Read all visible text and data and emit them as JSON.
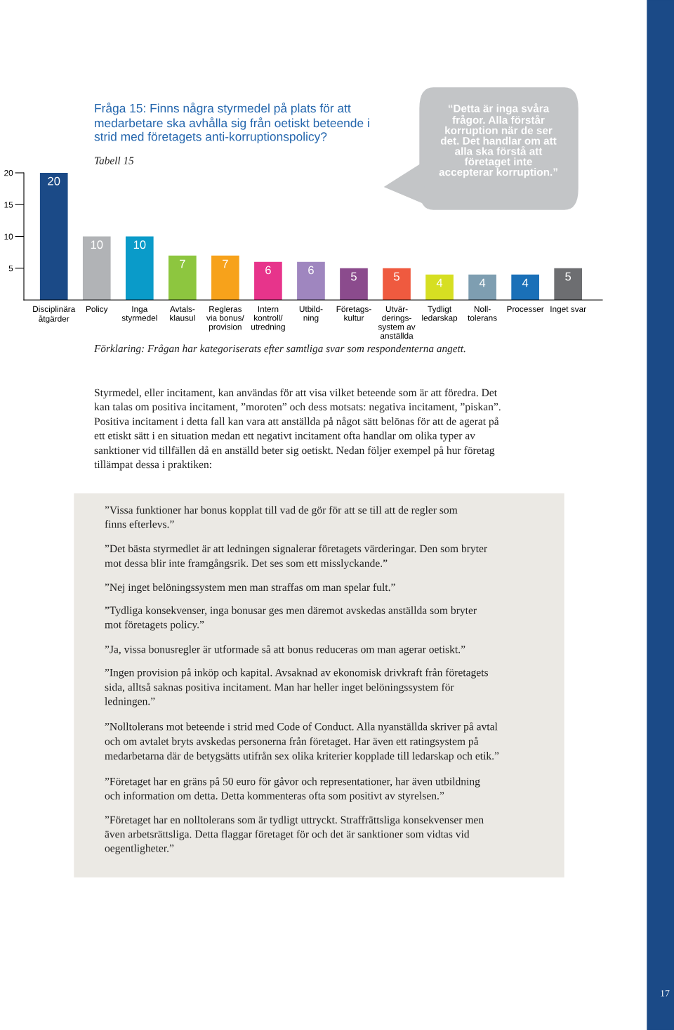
{
  "chart_data": {
    "type": "bar",
    "title": "Fråga 15: Finns några styrmedel på plats för att\nmedarbetare ska avhålla sig från oetiskt beteende i\nstrid med företagets anti-korruptionspolicy?",
    "subtitle": "Tabell 15",
    "categories": [
      "Disciplinära\nåtgärder",
      "Policy",
      "Inga\nstyrmedel",
      "Avtals-\nklausul",
      "Regleras\nvia bonus/\nprovision",
      "Intern\nkontroll/\nutredning",
      "Utbild-\nning",
      "Företags-\nkultur",
      "Utvär-\nderings-\nsystem av\nanställda",
      "Tydligt\nledarskap",
      "Noll-\ntolerans",
      "Processer",
      "Inget svar"
    ],
    "values": [
      20,
      10,
      10,
      7,
      7,
      6,
      6,
      5,
      5,
      4,
      4,
      4,
      5
    ],
    "colors": [
      "#1b4a87",
      "#b1b3b6",
      "#0a9bc9",
      "#8dc63f",
      "#f7a21b",
      "#e7348b",
      "#9f86bf",
      "#8b4b8d",
      "#ef5a3f",
      "#d6df22",
      "#7e9eb1",
      "#1a70b8",
      "#6d6e71"
    ],
    "ylim": [
      0,
      20
    ],
    "yticks": [
      5,
      10,
      15,
      20
    ],
    "data_labels": true,
    "grid": false,
    "legend": false,
    "annotations": [
      "“Detta är inga svåra\nfrågor. Alla förstår\nkorruption när de ser\ndet. Det handlar om att\nalla ska förstå att\nföretaget inte\naccepterar korruption.”",
      "Förklaring: Frågan har kategoriserats efter samtliga svar som respondenterna angett.",
      "Styrmedel, eller incitament, kan användas för att visa vilket beteende som är att föredra. Det\nkan talas om positiva incitament, ”moroten” och dess motsats: negativa incitament, ”piskan”.\nPositiva incitament i detta fall kan vara att anställda på något sätt belönas för att de agerat på\nett etiskt sätt i en situation medan ett negativt incitament ofta handlar om olika typer av\nsanktioner vid tillfällen då en anställd beter sig oetiskt. Nedan följer exempel på hur företag\ntillämpat dessa i praktiken:",
      "”Vissa funktioner har bonus kopplat till vad de gör för att se till att de regler som\nfinns efterlevs.”",
      "”Det bästa styrmedlet är att ledningen signalerar företagets värderingar. Den som bryter\nmot dessa blir inte framgångsrik. Det ses som ett misslyckande.”",
      "”Nej inget belöningssystem men man straffas om man spelar fult.”",
      "”Tydliga konsekvenser, inga bonusar ges men däremot avskedas anställda som bryter\nmot företagets policy.”",
      "”Ja, vissa bonusregler är utformade så att bonus reduceras om man agerar oetiskt.”",
      "”Ingen provision på inköp och kapital. Avsaknad av ekonomisk drivkraft från företagets\nsida, alltså saknas positiva incitament. Man har heller inget belöningssystem för\nledningen.”",
      "”Nolltolerans mot beteende i strid med Code of Conduct. Alla nyanställda skriver på avtal\noch om avtalet bryts avskedas personerna från företaget. Har även ett ratingsystem på\nmedarbetarna där de betygsätts utifrån sex olika kriterier kopplade till ledarskap och etik.”",
      "”Företaget har en gräns på 50 euro för gåvor och representationer, har även utbildning\noch information om detta. Detta kommenteras ofta som positivt av styrelsen.”",
      "”Företaget har en nolltolerans som är tydligt uttryckt. Straffrättsliga konsekvenser men\näven arbetsrättsliga. Detta flaggar företaget för och det är sanktioner som vidtas vid\noegentligheter.”",
      "17"
    ]
  }
}
